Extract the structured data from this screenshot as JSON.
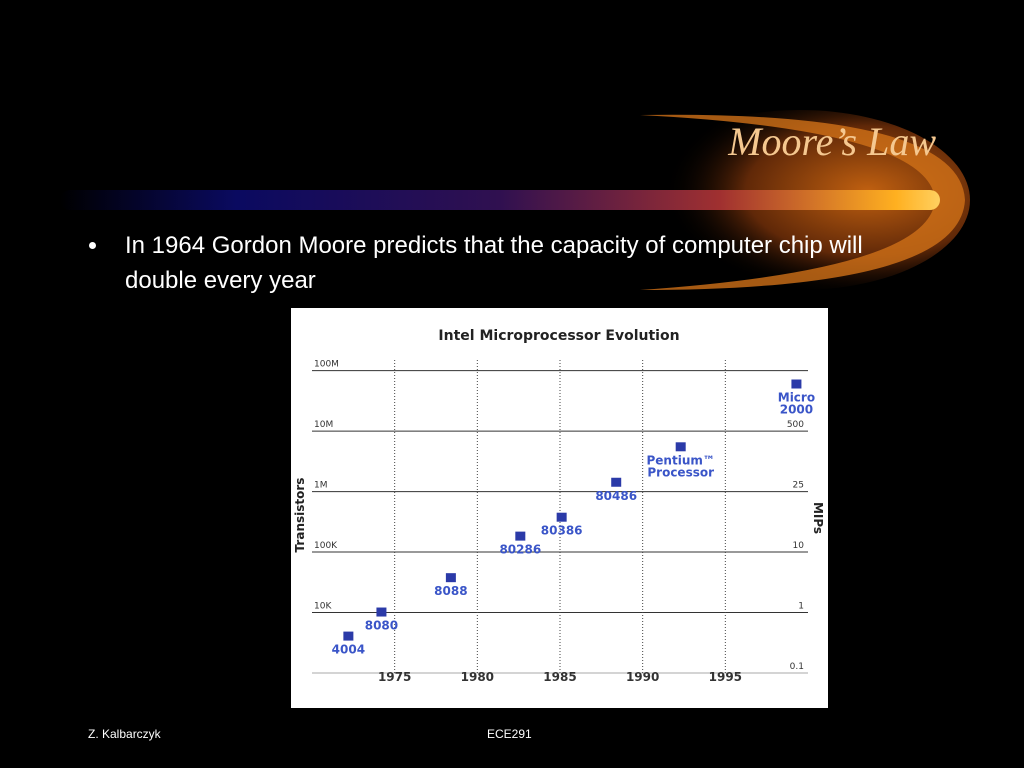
{
  "slide_title": "Moore’s Law",
  "bullet": "In 1964 Gordon Moore predicts that the capacity of computer chip will double every year",
  "footer_left": "Z. Kalbarczyk",
  "footer_center": "ECE291",
  "chart_data": {
    "type": "scatter",
    "title": "Intel Microprocessor Evolution",
    "ylabel": "Transistors",
    "y2label": "MIPs",
    "color": "#2b3aa8",
    "label_color": "#3a55c8",
    "x": [
      1972.2,
      1974.2,
      1978.4,
      1982.6,
      1985.1,
      1988.4,
      1992.3,
      1999.3
    ],
    "values": [
      4000,
      10000,
      37000,
      180000,
      370000,
      1400000,
      5400000,
      59000000
    ],
    "point_labels": [
      [
        "4004"
      ],
      [
        "8080"
      ],
      [
        "8088"
      ],
      [
        "80286"
      ],
      [
        "80386"
      ],
      [
        "80486"
      ],
      [
        "Pentium™",
        "Processor"
      ],
      [
        "Micro",
        "2000"
      ]
    ],
    "xlim": [
      1970,
      2000
    ],
    "xticks": [
      1975,
      1980,
      1985,
      1990,
      1995
    ],
    "ylim": [
      1000,
      150000000
    ],
    "log_y": true,
    "yticks": [
      {
        "value": 10000,
        "label": "10K"
      },
      {
        "value": 100000,
        "label": "100K"
      },
      {
        "value": 1000000,
        "label": "1M"
      },
      {
        "value": 10000000,
        "label": "10M"
      },
      {
        "value": 100000000,
        "label": "100M"
      }
    ],
    "y2ticks": [
      0.1,
      1,
      10,
      25,
      500
    ],
    "grid": true
  }
}
